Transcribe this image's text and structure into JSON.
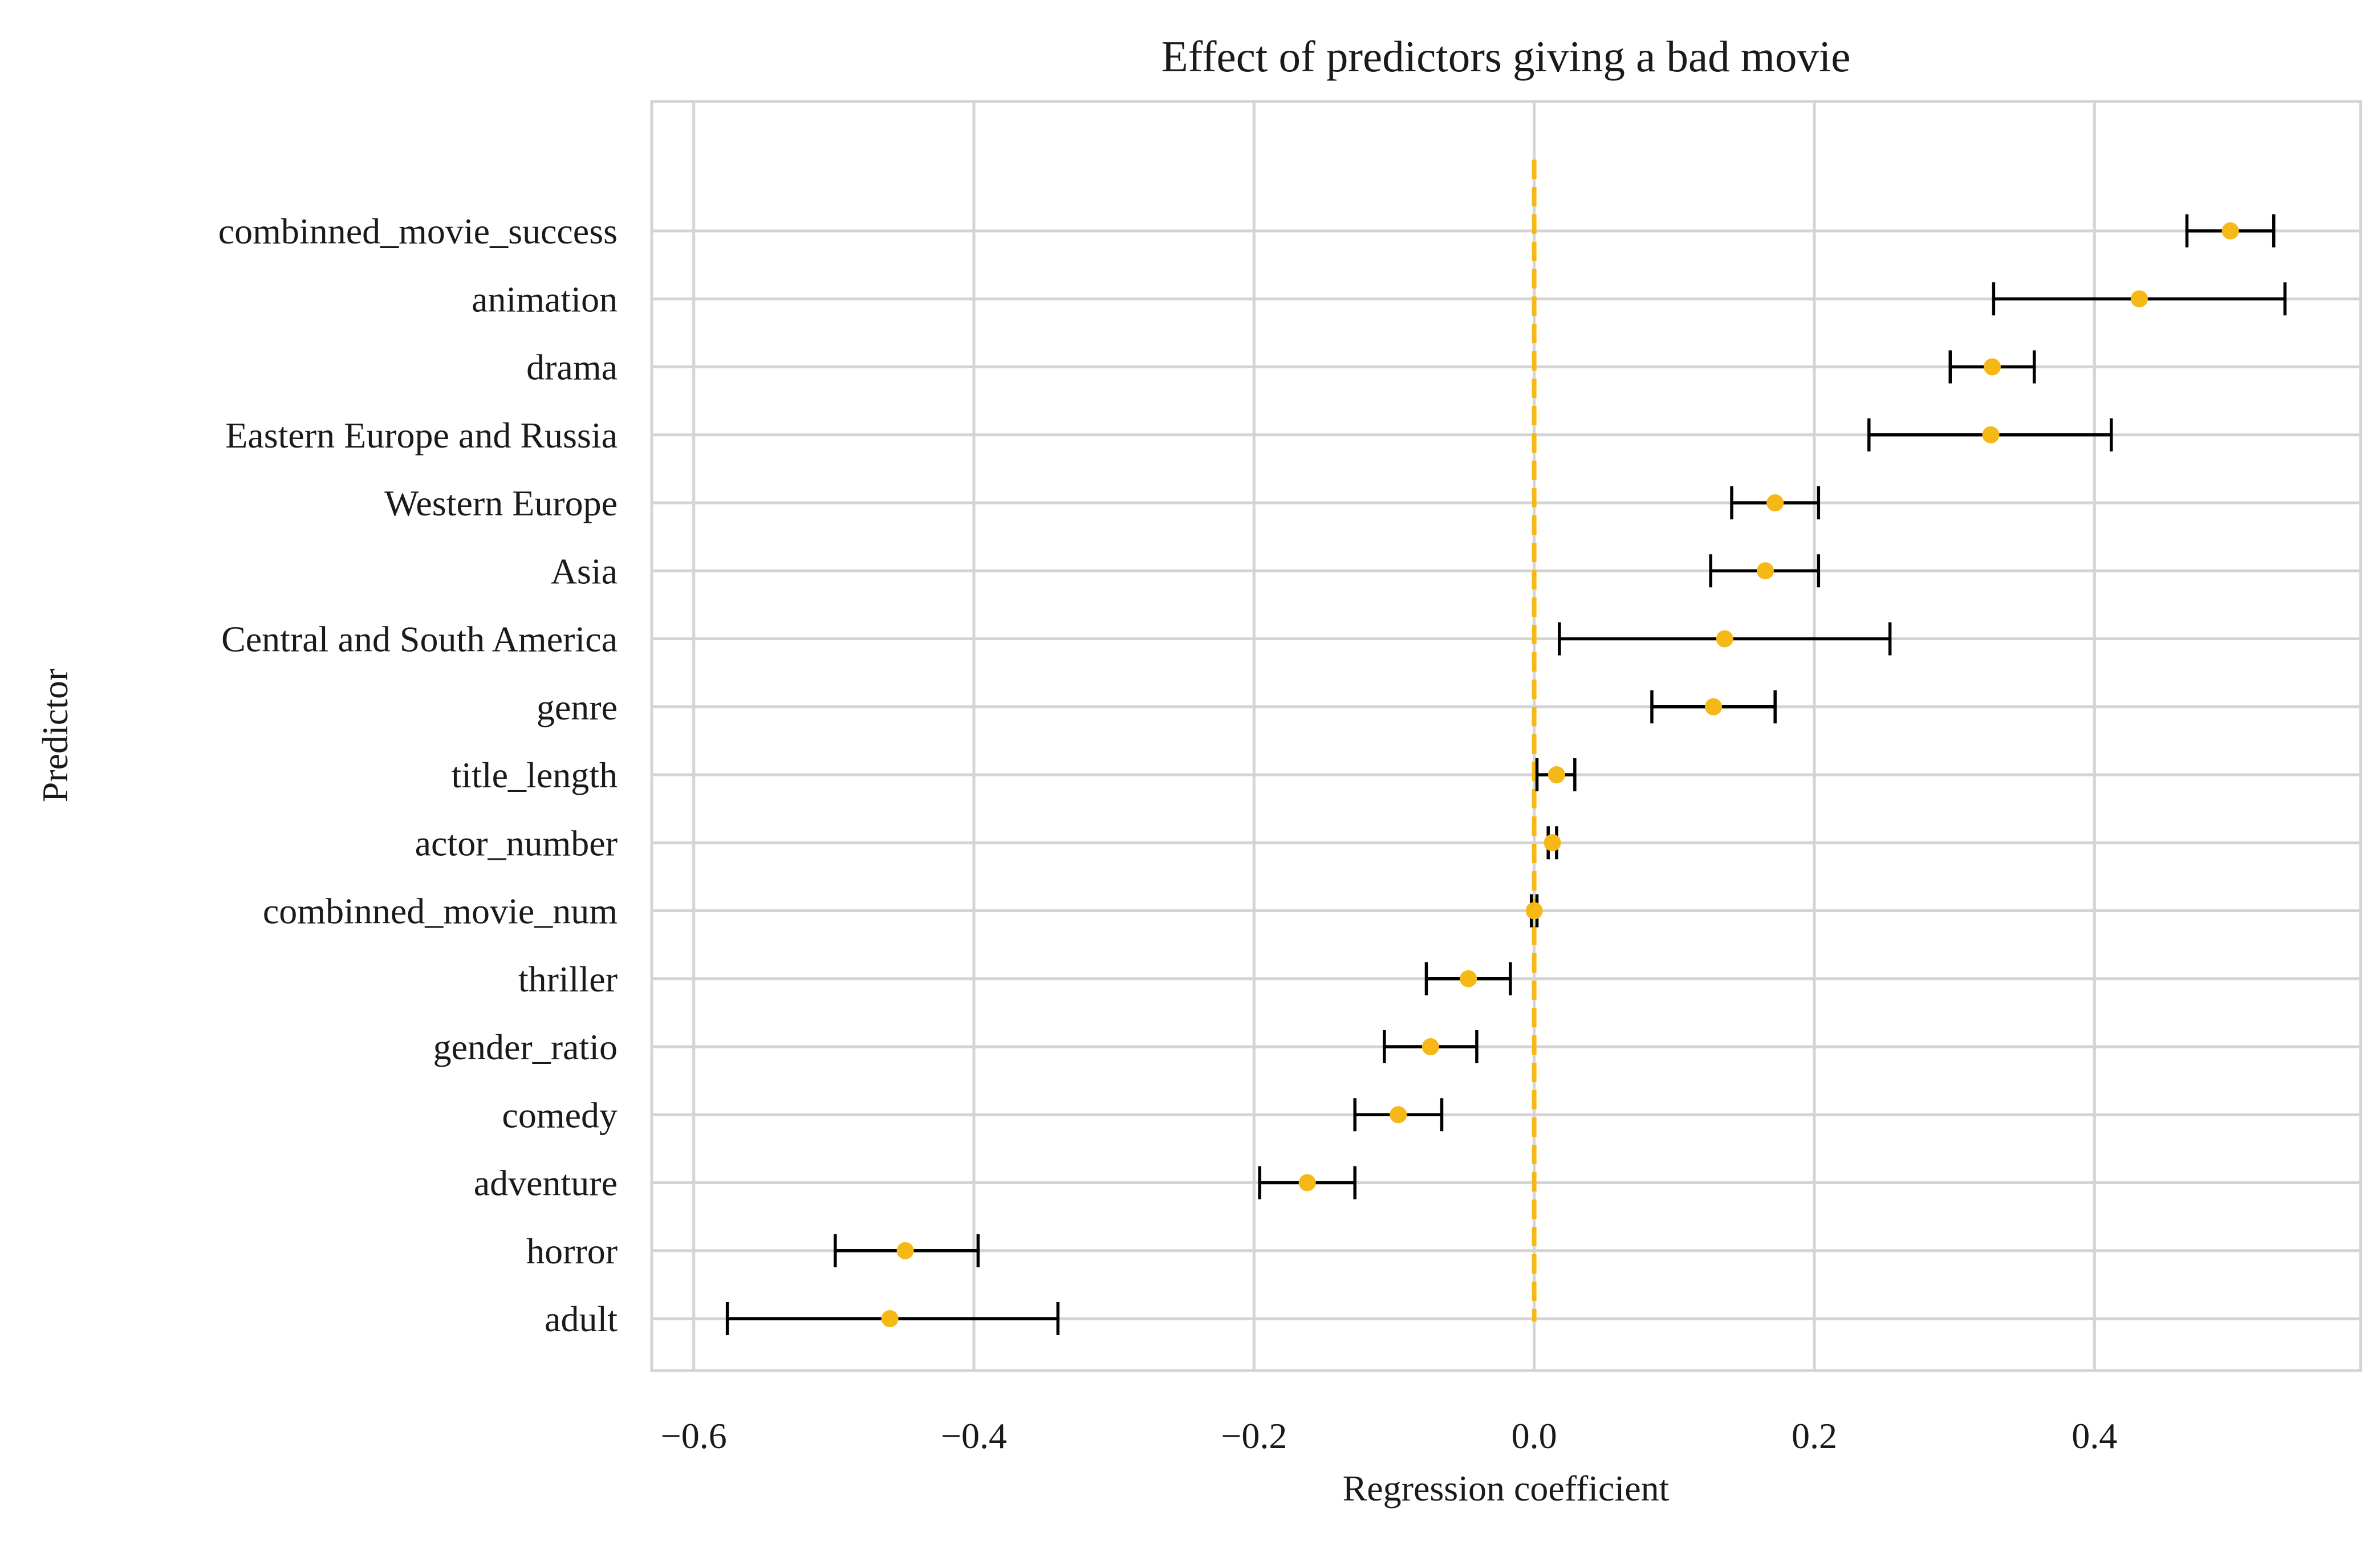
{
  "chart_data": {
    "type": "scatter",
    "title": "Effect of predictors giving a bad movie",
    "xlabel": "Regression coefficient",
    "ylabel": "Predictor",
    "xlim": [
      -0.63,
      0.59
    ],
    "xticks": [
      -0.6,
      -0.4,
      -0.2,
      0.0,
      0.2,
      0.4
    ],
    "xtick_labels": [
      "−0.6",
      "−0.4",
      "−0.2",
      "0.0",
      "0.2",
      "0.4"
    ],
    "grid": true,
    "reference_line": {
      "x": 0.0,
      "style": "dashed",
      "color": "#f6b817"
    },
    "marker_color": "#f6b817",
    "errorbar_color": "#000000",
    "categories": [
      "combinned_movie_success",
      "animation",
      "drama",
      "Eastern Europe and Russia",
      "Western Europe",
      "Asia",
      "Central and South America",
      "genre",
      "title_length",
      "actor_number",
      "combinned_movie_num",
      "thriller",
      "gender_ratio",
      "comedy",
      "adventure",
      "horror",
      "adult"
    ],
    "values": [
      0.497,
      0.432,
      0.327,
      0.326,
      0.172,
      0.165,
      0.136,
      0.128,
      0.016,
      0.013,
      0.0,
      -0.047,
      -0.074,
      -0.097,
      -0.162,
      -0.449,
      -0.46
    ],
    "ci_lower": [
      0.466,
      0.328,
      0.297,
      0.239,
      0.141,
      0.126,
      0.018,
      0.084,
      0.002,
      0.01,
      -0.002,
      -0.077,
      -0.107,
      -0.128,
      -0.196,
      -0.499,
      -0.576
    ],
    "ci_upper": [
      0.528,
      0.536,
      0.357,
      0.412,
      0.203,
      0.203,
      0.254,
      0.172,
      0.029,
      0.016,
      0.002,
      -0.017,
      -0.041,
      -0.066,
      -0.128,
      -0.397,
      -0.34
    ]
  }
}
